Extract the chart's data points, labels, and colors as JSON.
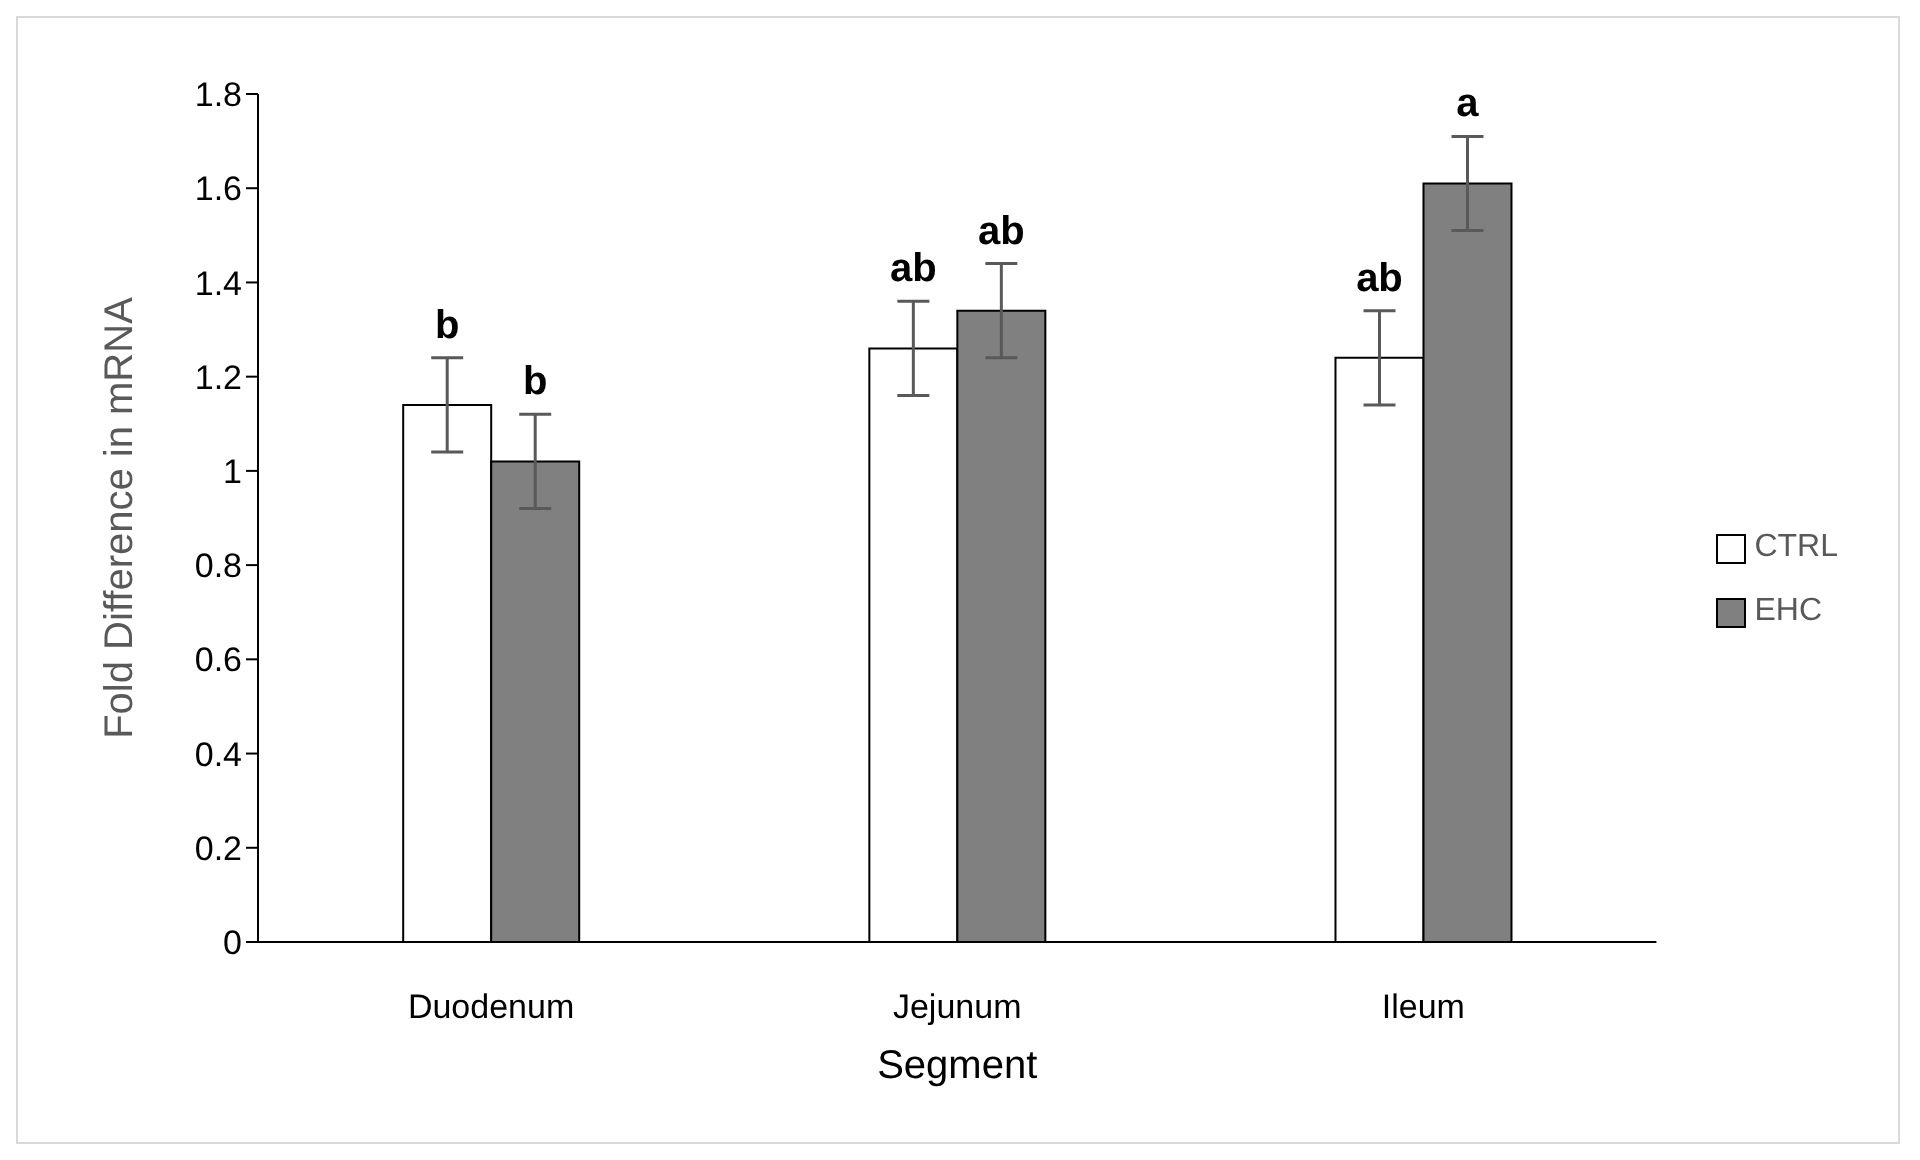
{
  "chart_data": {
    "type": "bar",
    "xlabel": "Segment",
    "ylabel": "Fold Difference in mRNA",
    "categories": [
      "Duodenum",
      "Jejunum",
      "Ileum"
    ],
    "series": [
      {
        "name": "CTRL",
        "color": "#ffffff",
        "values": [
          1.14,
          1.26,
          1.24
        ],
        "errors": [
          0.1,
          0.1,
          0.1
        ]
      },
      {
        "name": "EHC",
        "color": "#808080",
        "values": [
          1.02,
          1.34,
          1.61
        ],
        "errors": [
          0.1,
          0.1,
          0.1
        ]
      }
    ],
    "ylim": [
      0,
      1.8
    ],
    "yticks": [
      0,
      0.2,
      0.4,
      0.6,
      0.8,
      1,
      1.2,
      1.4,
      1.6,
      1.8
    ],
    "grid": false,
    "legend": "right",
    "annotations": [
      "b",
      "b",
      "ab",
      "ab",
      "ab",
      "a"
    ]
  }
}
